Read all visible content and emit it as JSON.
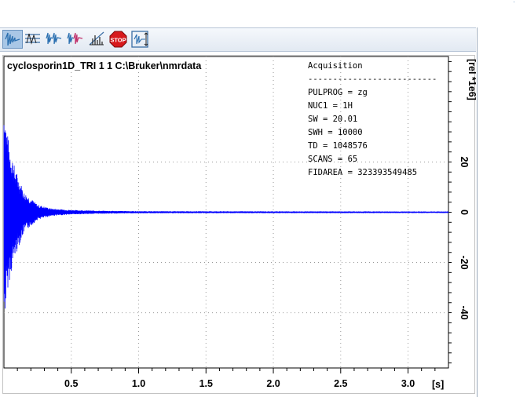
{
  "toolbar": {
    "buttons": [
      {
        "name": "fid-display-icon",
        "active": true
      },
      {
        "name": "spectrum-display-icon",
        "active": false
      },
      {
        "name": "multiple-fid-icon",
        "active": false
      },
      {
        "name": "multiple-fid-colored-icon",
        "active": false
      },
      {
        "name": "interleave-spectrum-icon",
        "active": false
      },
      {
        "name": "stop-icon",
        "active": false,
        "label": "STOP"
      },
      {
        "name": "fit-to-window-icon",
        "active": false
      }
    ]
  },
  "plot": {
    "title": "cyclosporin1D_TRI  1  1  C:\\Bruker\\nmrdata",
    "params_heading": "Acquisition",
    "params_separator": "--------------------------",
    "params": [
      "PULPROG = zg",
      "NUC1 = 1H",
      "SW = 20.01",
      "SWH = 10000",
      "TD = 1048576",
      "SCANS = 65",
      "FIDAREA = 323393549485"
    ],
    "x_unit_label": "[s]",
    "y_unit_label": "[rel *1e6]"
  },
  "chart_data": {
    "type": "line",
    "title": "",
    "xlabel": "[s]",
    "ylabel": "[rel *1e6]",
    "xlim": [
      0,
      3.3
    ],
    "ylim": [
      -62,
      62
    ],
    "x_ticks": [
      0.5,
      1.0,
      1.5,
      2.0,
      2.5,
      3.0
    ],
    "y_ticks": [
      20,
      0,
      -20,
      -40
    ],
    "series": [
      {
        "color": "#0000ff",
        "style": "decaying oscillation",
        "envelope_x": [
          0.0,
          0.03,
          0.08,
          0.15,
          0.25,
          0.35,
          0.5,
          0.7,
          1.0,
          3.3
        ],
        "envelope_y": [
          45,
          30,
          18,
          8,
          3,
          1.5,
          0.9,
          0.6,
          0.4,
          0.3
        ]
      }
    ],
    "grid": true
  }
}
